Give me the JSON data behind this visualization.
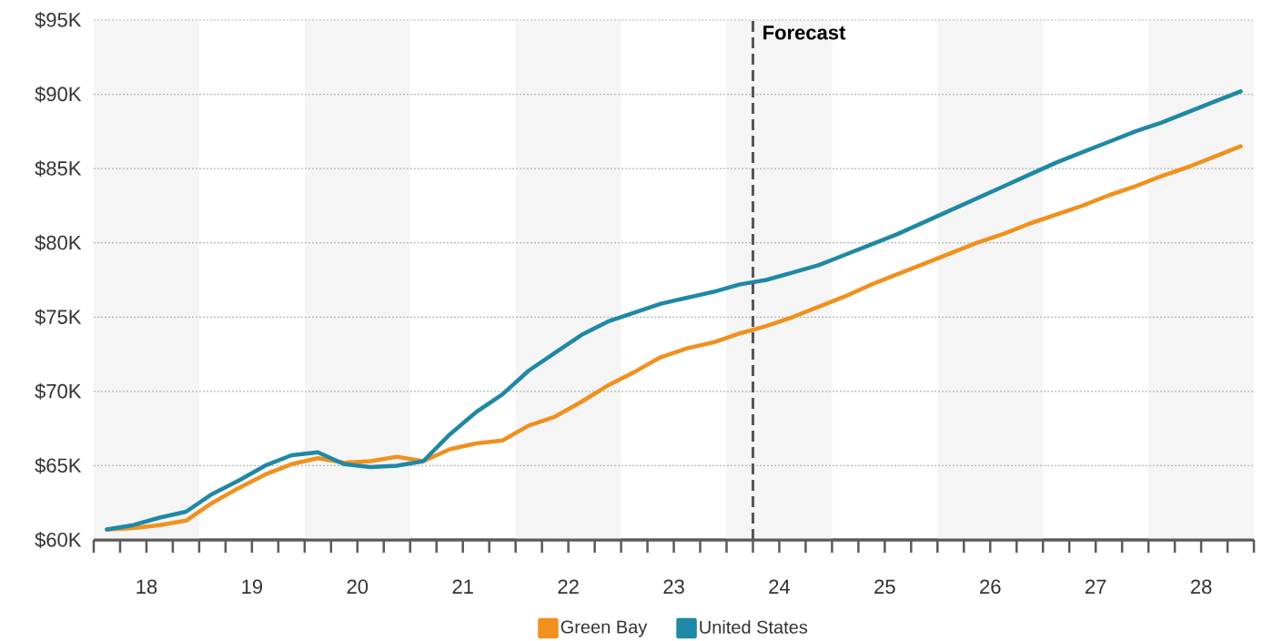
{
  "chart_data": {
    "type": "line",
    "x": [
      17.625,
      17.875,
      18.125,
      18.375,
      18.625,
      18.875,
      19.125,
      19.375,
      19.625,
      19.875,
      20.125,
      20.375,
      20.625,
      20.875,
      21.125,
      21.375,
      21.625,
      21.875,
      22.125,
      22.375,
      22.625,
      22.875,
      23.125,
      23.375,
      23.625,
      23.875,
      24.125,
      24.375,
      24.625,
      24.875,
      25.125,
      25.375,
      25.625,
      25.875,
      26.125,
      26.375,
      26.625,
      26.875,
      27.125,
      27.375,
      27.625,
      27.875,
      28.125,
      28.375
    ],
    "series": [
      {
        "name": "Green Bay",
        "color": "#f0901e",
        "values": [
          60.7,
          60.8,
          61.0,
          61.3,
          62.5,
          63.5,
          64.4,
          65.1,
          65.5,
          65.2,
          65.3,
          65.6,
          65.3,
          66.1,
          66.5,
          66.7,
          67.7,
          68.3,
          69.3,
          70.4,
          71.3,
          72.3,
          72.9,
          73.3,
          73.9,
          74.4,
          75.0,
          75.7,
          76.4,
          77.2,
          77.9,
          78.6,
          79.3,
          80.0,
          80.6,
          81.3,
          81.9,
          82.5,
          83.2,
          83.8,
          84.5,
          85.1,
          85.8,
          86.5
        ]
      },
      {
        "name": "United States",
        "color": "#1f88a5",
        "values": [
          60.7,
          61.0,
          61.5,
          61.9,
          63.1,
          64.0,
          65.0,
          65.7,
          65.9,
          65.1,
          64.9,
          65.0,
          65.3,
          67.1,
          68.6,
          69.8,
          71.4,
          72.6,
          73.8,
          74.7,
          75.3,
          75.9,
          76.3,
          76.7,
          77.2,
          77.5,
          78.0,
          78.5,
          79.2,
          79.9,
          80.6,
          81.4,
          82.2,
          83.0,
          83.8,
          84.6,
          85.4,
          86.1,
          86.8,
          87.5,
          88.1,
          88.8,
          89.5,
          90.2
        ]
      }
    ],
    "xlim": [
      17.5,
      28.5
    ],
    "xticks": [
      {
        "value": 17.5,
        "label": null
      },
      {
        "value": 17.75,
        "label": null
      },
      18,
      {
        "value": 18.25,
        "label": null
      },
      {
        "value": 18.5,
        "label": null
      },
      {
        "value": 18.75,
        "label": null
      },
      19,
      {
        "value": 19.25,
        "label": null
      },
      {
        "value": 19.5,
        "label": null
      },
      {
        "value": 19.75,
        "label": null
      },
      20,
      {
        "value": 20.25,
        "label": null
      },
      {
        "value": 20.5,
        "label": null
      },
      {
        "value": 20.75,
        "label": null
      },
      21,
      {
        "value": 21.25,
        "label": null
      },
      {
        "value": 21.5,
        "label": null
      },
      {
        "value": 21.75,
        "label": null
      },
      22,
      {
        "value": 22.25,
        "label": null
      },
      {
        "value": 22.5,
        "label": null
      },
      {
        "value": 22.75,
        "label": null
      },
      23,
      {
        "value": 23.25,
        "label": null
      },
      {
        "value": 23.5,
        "label": null
      },
      {
        "value": 23.75,
        "label": null
      },
      24,
      {
        "value": 24.25,
        "label": null
      },
      {
        "value": 24.5,
        "label": null
      },
      {
        "value": 24.75,
        "label": null
      },
      25,
      {
        "value": 25.25,
        "label": null
      },
      {
        "value": 25.5,
        "label": null
      },
      {
        "value": 25.75,
        "label": null
      },
      26,
      {
        "value": 26.25,
        "label": null
      },
      {
        "value": 26.5,
        "label": null
      },
      {
        "value": 26.75,
        "label": null
      },
      27,
      {
        "value": 27.25,
        "label": null
      },
      {
        "value": 27.5,
        "label": null
      },
      {
        "value": 27.75,
        "label": null
      },
      28,
      {
        "value": 28.25,
        "label": null
      },
      {
        "value": 28.5,
        "label": null
      }
    ],
    "ylim": [
      60,
      95
    ],
    "yticks": [
      {
        "value": 60,
        "label": "$60K"
      },
      {
        "value": 65,
        "label": "$65K"
      },
      {
        "value": 70,
        "label": "$70K"
      },
      {
        "value": 75,
        "label": "$75K"
      },
      {
        "value": 80,
        "label": "$80K"
      },
      {
        "value": 85,
        "label": "$85K"
      },
      {
        "value": 90,
        "label": "$90K"
      },
      {
        "value": 95,
        "label": "$95K"
      }
    ],
    "bands": [
      {
        "axis": "x",
        "from": 17.5,
        "to": 18.5,
        "color": "#f5f5f5"
      },
      {
        "axis": "x",
        "from": 19.5,
        "to": 20.5,
        "color": "#f5f5f5"
      },
      {
        "axis": "x",
        "from": 21.5,
        "to": 22.5,
        "color": "#f5f5f5"
      },
      {
        "axis": "x",
        "from": 23.5,
        "to": 24.5,
        "color": "#f5f5f5"
      },
      {
        "axis": "x",
        "from": 25.5,
        "to": 26.5,
        "color": "#f5f5f5"
      },
      {
        "axis": "x",
        "from": 27.5,
        "to": 28.5,
        "color": "#f5f5f5"
      }
    ],
    "ref_lines": [
      {
        "axis": "x",
        "value": 23.75,
        "label": "Forecast",
        "color": "#555555",
        "line_style": "dashed"
      }
    ],
    "grid": "y",
    "legend": "bottom"
  }
}
